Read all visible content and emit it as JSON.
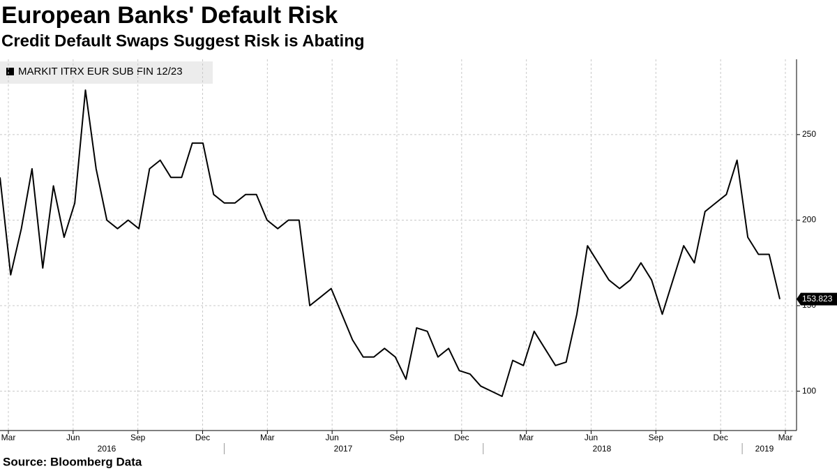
{
  "chart_data": {
    "type": "line",
    "title": "European Banks' Default Risk",
    "subtitle": "Credit Default Swaps Suggest Risk is Abating",
    "source": "Source: Bloomberg Data",
    "xtick_labels": [
      "Mar",
      "Jun",
      "Sep",
      "Dec",
      "Mar",
      "Jun",
      "Sep",
      "Dec",
      "Mar",
      "Jun",
      "Sep",
      "Dec",
      "Mar"
    ],
    "year_labels": [
      "2016",
      "2017",
      "2018",
      "2019"
    ],
    "series": [
      {
        "name": "MARKIT ITRX EUR SUB FIN 12/23",
        "color": "#000000",
        "values": [
          225,
          168,
          195,
          230,
          172,
          220,
          190,
          210,
          276,
          230,
          200,
          195,
          200,
          195,
          230,
          235,
          225,
          225,
          245,
          245,
          215,
          210,
          210,
          215,
          215,
          200,
          195,
          200,
          200,
          150,
          155,
          160,
          145,
          130,
          120,
          120,
          125,
          120,
          107,
          137,
          135,
          120,
          125,
          112,
          110,
          103,
          100,
          97,
          118,
          115,
          135,
          125,
          115,
          117,
          145,
          185,
          175,
          165,
          160,
          165,
          175,
          165,
          145,
          165,
          185,
          175,
          205,
          210,
          215,
          235,
          190,
          180,
          180,
          153.823
        ]
      }
    ],
    "ylim": [
      77,
      294
    ],
    "yticks": [
      100,
      150,
      200,
      250
    ],
    "grid": true
  }
}
